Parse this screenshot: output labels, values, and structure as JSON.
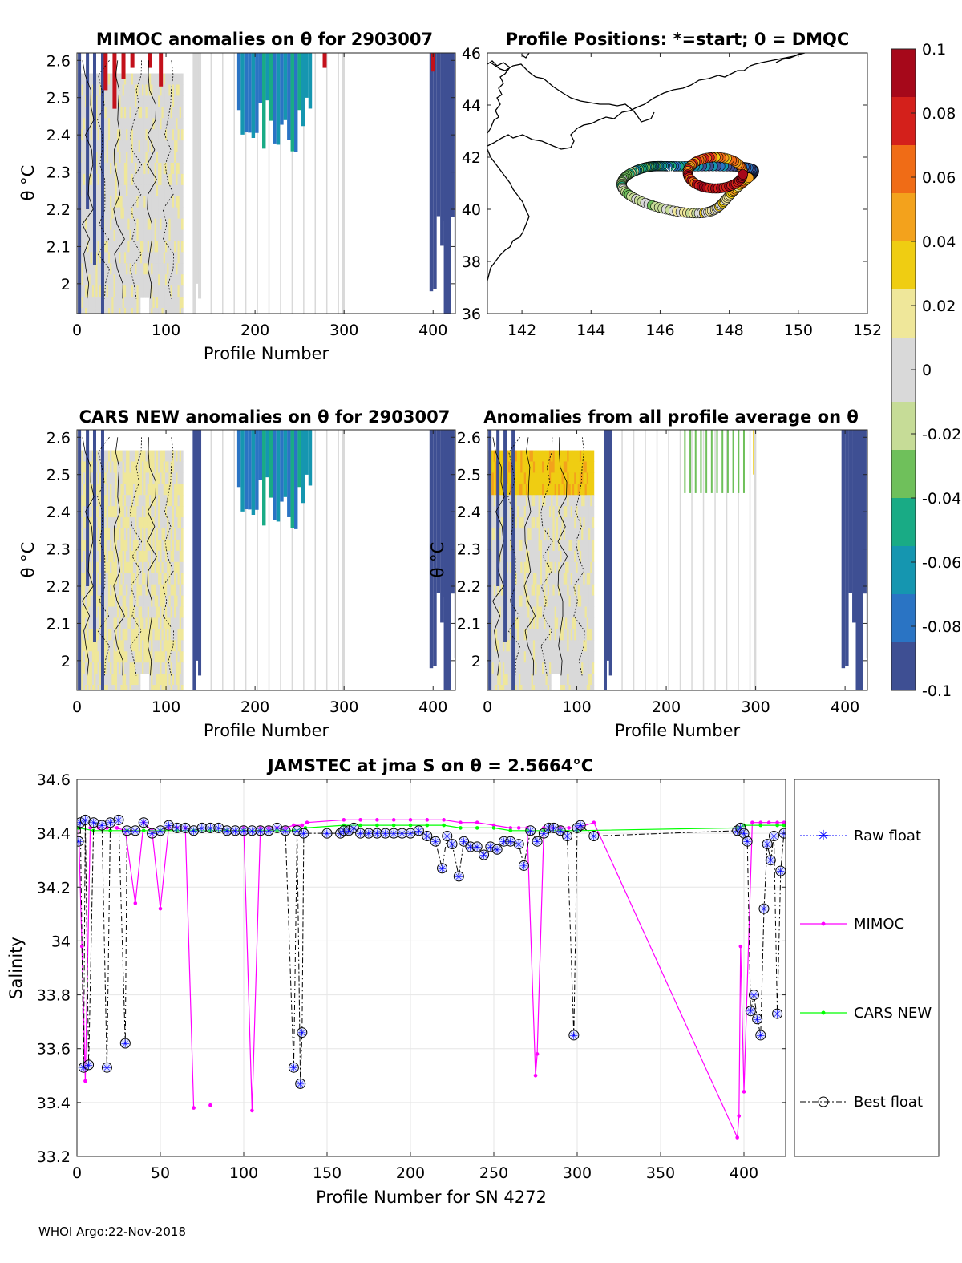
{
  "footer": "WHOI Argo:22-Nov-2018",
  "colorbar": {
    "ticks": [
      "0.1",
      "0.08",
      "0.06",
      "0.04",
      "0.02",
      "0",
      "-0.02",
      "-0.04",
      "-0.06",
      "-0.08",
      "-0.1"
    ],
    "min": -0.1,
    "max": 0.1,
    "colors": [
      "#3e4f93",
      "#2a74c4",
      "#1596b0",
      "#19ab85",
      "#6fc05b",
      "#c6dc97",
      "#d9d9d9",
      "#efe79a",
      "#efcd12",
      "#f3a21c",
      "#f06c16",
      "#d4201b",
      "#a6081a"
    ]
  },
  "chart_data": [
    {
      "id": "mimoc_anom",
      "type": "heatmap",
      "title": "MIMOC anomalies on θ  for 2903007",
      "xlabel": "Profile Number",
      "ylabel": "θ °C",
      "xlim": [
        0,
        425
      ],
      "ylim": [
        1.92,
        2.62
      ],
      "xticks": [
        "0",
        "100",
        "200",
        "300",
        "400"
      ],
      "yticks": [
        "2",
        "2.1",
        "2.2",
        "2.3",
        "2.4",
        "2.5",
        "2.6"
      ]
    },
    {
      "id": "positions",
      "type": "scatter",
      "title": "Profile Positions: *=start; 0 = DMQC",
      "xlim": [
        141,
        152
      ],
      "ylim": [
        36,
        46
      ],
      "xticks": [
        "142",
        "144",
        "146",
        "148",
        "150",
        "152"
      ],
      "yticks": [
        "36",
        "38",
        "40",
        "42",
        "44",
        "46"
      ],
      "start": [
        146.3,
        41.4
      ]
    },
    {
      "id": "cars_anom",
      "type": "heatmap",
      "title": "CARS NEW anomalies on θ for 2903007",
      "xlabel": "Profile Number",
      "ylabel": "θ °C",
      "xlim": [
        0,
        425
      ],
      "ylim": [
        1.92,
        2.62
      ],
      "xticks": [
        "0",
        "100",
        "200",
        "300",
        "400"
      ],
      "yticks": [
        "2",
        "2.1",
        "2.2",
        "2.3",
        "2.4",
        "2.5",
        "2.6"
      ]
    },
    {
      "id": "avg_anom",
      "type": "heatmap",
      "title": "Anomalies from all profile average on θ",
      "xlabel": "Profile Number",
      "ylabel": "θ °C",
      "xlim": [
        0,
        425
      ],
      "ylim": [
        1.92,
        2.62
      ],
      "xticks": [
        "0",
        "100",
        "200",
        "300",
        "400"
      ],
      "yticks": [
        "2",
        "2.1",
        "2.2",
        "2.3",
        "2.4",
        "2.5",
        "2.6"
      ]
    },
    {
      "id": "salinity",
      "type": "line",
      "title": "JAMSTEC at jma S on θ = 2.5664°C",
      "xlabel": "Profile Number for SN 4272",
      "ylabel": "Salinity",
      "xlim": [
        0,
        425
      ],
      "ylim": [
        33.2,
        34.6
      ],
      "xticks": [
        "0",
        "50",
        "100",
        "150",
        "200",
        "250",
        "300",
        "350",
        "400"
      ],
      "yticks": [
        "33.2",
        "33.4",
        "33.6",
        "33.8",
        "34",
        "34.2",
        "34.4",
        "34.6"
      ],
      "legend": [
        "Raw float",
        "MIMOC",
        "CARS NEW",
        "Best float"
      ],
      "series": [
        {
          "name": "MIMOC",
          "x": [
            1,
            3,
            5,
            8,
            13,
            18,
            24,
            29,
            35,
            40,
            45,
            50,
            55,
            60,
            65,
            70,
            75,
            80,
            85,
            90,
            95,
            100,
            105,
            110,
            115,
            120,
            125,
            130,
            135,
            138,
            160,
            170,
            180,
            190,
            200,
            210,
            220,
            230,
            240,
            250,
            260,
            265,
            270,
            275,
            276,
            280,
            285,
            290,
            295,
            300,
            310,
            396,
            397,
            398,
            400,
            405,
            410,
            415,
            420,
            424
          ],
          "y": [
            34.42,
            33.98,
            33.48,
            34.42,
            34.42,
            34.42,
            34.42,
            34.41,
            34.14,
            34.44,
            34.41,
            34.12,
            34.42,
            34.42,
            34.42,
            33.38,
            null,
            33.39,
            null,
            null,
            null,
            34.42,
            33.37,
            34.42,
            34.42,
            34.42,
            34.42,
            34.43,
            34.43,
            34.44,
            34.45,
            34.45,
            34.45,
            34.45,
            34.45,
            34.45,
            34.45,
            34.44,
            34.44,
            34.43,
            34.42,
            34.42,
            34.42,
            33.5,
            33.58,
            34.42,
            34.42,
            34.42,
            34.42,
            34.42,
            34.44,
            33.27,
            33.35,
            33.98,
            33.44,
            34.44,
            34.44,
            34.44,
            34.44,
            34.44
          ]
        },
        {
          "name": "CARS NEW",
          "x": [
            1,
            10,
            20,
            30,
            40,
            50,
            60,
            70,
            80,
            90,
            100,
            110,
            120,
            130,
            137,
            160,
            170,
            180,
            190,
            200,
            210,
            220,
            230,
            240,
            250,
            260,
            270,
            280,
            290,
            300,
            396,
            400,
            410,
            420,
            424
          ],
          "y": [
            34.42,
            34.41,
            34.41,
            34.41,
            34.41,
            34.41,
            34.41,
            34.41,
            34.41,
            34.41,
            34.41,
            34.41,
            34.41,
            34.41,
            34.42,
            34.43,
            34.43,
            34.43,
            34.43,
            34.43,
            34.43,
            34.43,
            34.42,
            34.42,
            34.42,
            34.41,
            34.41,
            34.41,
            34.41,
            34.41,
            34.42,
            34.43,
            34.43,
            34.43,
            34.43
          ]
        },
        {
          "name": "Best float",
          "x": [
            1,
            2,
            4,
            5,
            7,
            10,
            15,
            18,
            20,
            25,
            29,
            30,
            35,
            40,
            45,
            50,
            55,
            60,
            65,
            70,
            75,
            80,
            85,
            90,
            95,
            100,
            105,
            110,
            115,
            120,
            125,
            130,
            132,
            134,
            135,
            136,
            150,
            158,
            160,
            163,
            166,
            170,
            175,
            180,
            185,
            190,
            195,
            200,
            205,
            210,
            215,
            219,
            222,
            225,
            229,
            232,
            236,
            240,
            244,
            248,
            252,
            256,
            260,
            265,
            268,
            272,
            276,
            280,
            283,
            286,
            290,
            294,
            298,
            300,
            302,
            310,
            396,
            398,
            400,
            402,
            404,
            406,
            408,
            410,
            412,
            414,
            416,
            418,
            420,
            422,
            424
          ],
          "y": [
            34.37,
            34.44,
            33.53,
            34.45,
            33.54,
            34.44,
            34.43,
            33.53,
            34.44,
            34.45,
            33.62,
            34.41,
            34.41,
            34.44,
            34.4,
            34.41,
            34.43,
            34.42,
            34.42,
            34.41,
            34.42,
            34.42,
            34.42,
            34.41,
            34.41,
            34.41,
            34.41,
            34.41,
            34.41,
            34.42,
            34.41,
            33.53,
            34.41,
            33.47,
            33.66,
            34.4,
            34.4,
            34.4,
            34.41,
            34.41,
            34.42,
            34.4,
            34.4,
            34.4,
            34.4,
            34.4,
            34.4,
            34.4,
            34.41,
            34.39,
            34.37,
            34.27,
            34.39,
            34.36,
            34.24,
            34.37,
            34.35,
            34.35,
            34.32,
            34.35,
            34.34,
            34.37,
            34.37,
            34.36,
            34.28,
            34.41,
            34.37,
            34.4,
            34.42,
            34.42,
            34.41,
            34.39,
            33.65,
            34.42,
            34.43,
            34.39,
            34.41,
            34.42,
            34.4,
            34.37,
            33.74,
            33.8,
            33.71,
            33.65,
            34.12,
            34.36,
            34.3,
            34.39,
            33.73,
            34.26,
            34.4
          ]
        }
      ]
    }
  ]
}
